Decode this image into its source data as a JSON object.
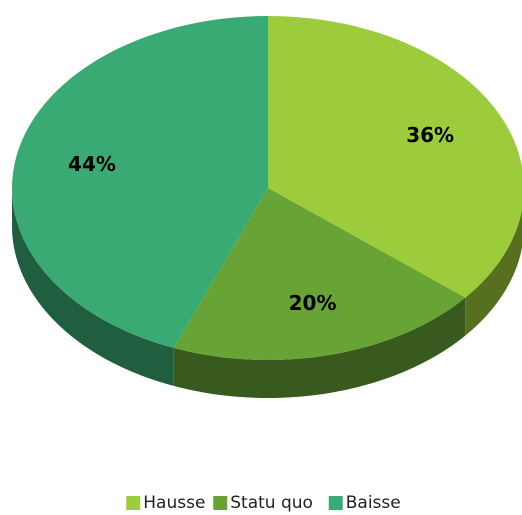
{
  "chart_data": {
    "type": "pie",
    "categories": [
      "Hausse",
      "Statu quo",
      "Baisse"
    ],
    "values": [
      36,
      20,
      44
    ],
    "value_labels": [
      "36%",
      "20%",
      "44%"
    ],
    "colors": [
      "#9ccc3b",
      "#68a336",
      "#3aaa74"
    ],
    "legend": "bottom"
  }
}
